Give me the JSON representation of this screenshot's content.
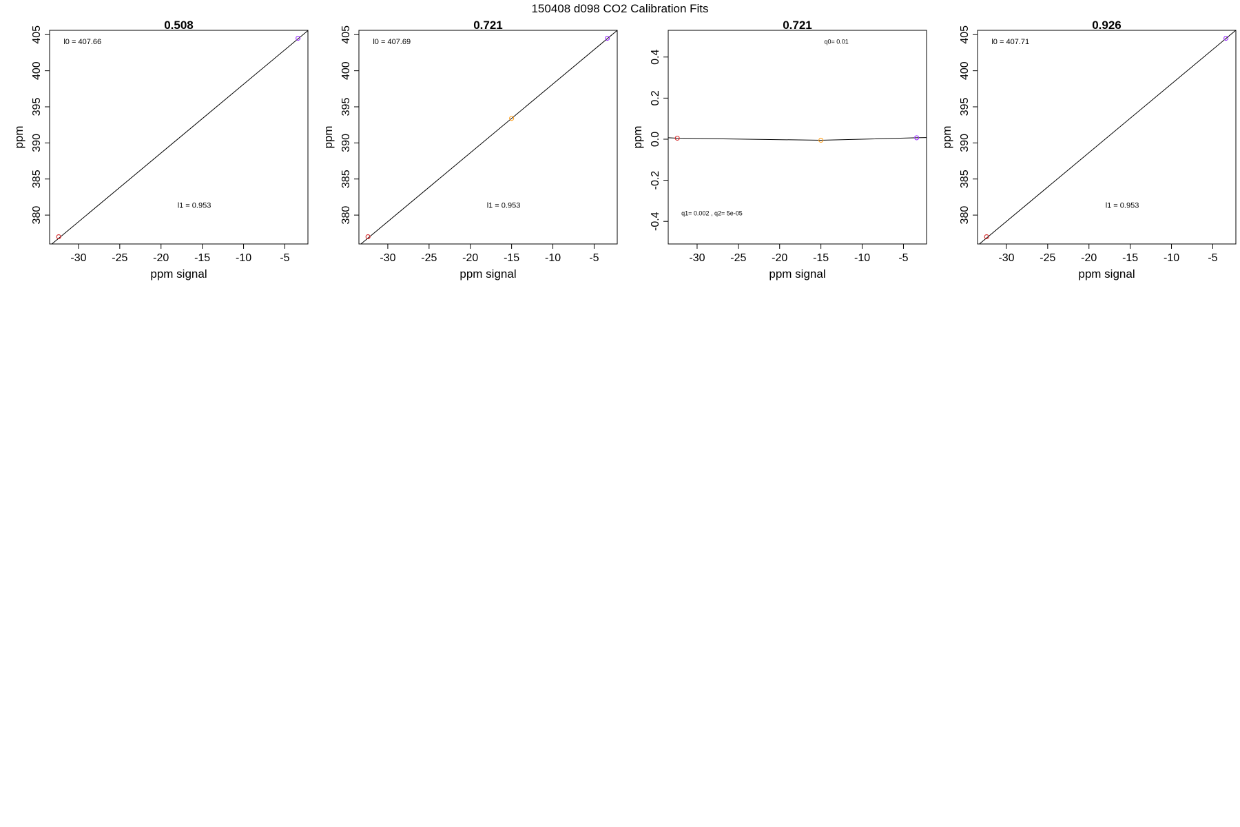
{
  "title": "150408   d098   CO2 Calibration Fits",
  "chart_data": [
    {
      "type": "scatter",
      "title": "0.508",
      "xlabel": "ppm signal",
      "ylabel": "ppm",
      "xlim": [
        -33.5,
        -2.2
      ],
      "ylim": [
        376.0,
        405.6
      ],
      "xticks": [
        -30,
        -25,
        -20,
        -15,
        -10,
        -5
      ],
      "yticks": [
        380,
        385,
        390,
        395,
        400,
        405
      ],
      "grid": false,
      "points": [
        {
          "x": -32.4,
          "y": 377.0,
          "color": "#d62728"
        },
        {
          "x": -3.4,
          "y": 404.5,
          "color": "#9b30ff"
        }
      ],
      "fit": {
        "kind": "linear",
        "intercept": 407.66,
        "slope": 0.953
      },
      "annotations": [
        {
          "text": "l0 =  407.66",
          "x": -31.8,
          "y": 403.7
        },
        {
          "text": "l1 =  0.953",
          "x": -18.0,
          "y": 381.0
        }
      ]
    },
    {
      "type": "scatter",
      "title": "0.721",
      "xlabel": "ppm signal",
      "ylabel": "ppm",
      "xlim": [
        -33.5,
        -2.2
      ],
      "ylim": [
        376.0,
        405.6
      ],
      "xticks": [
        -30,
        -25,
        -20,
        -15,
        -10,
        -5
      ],
      "yticks": [
        380,
        385,
        390,
        395,
        400,
        405
      ],
      "grid": false,
      "points": [
        {
          "x": -32.4,
          "y": 377.0,
          "color": "#d62728"
        },
        {
          "x": -15.0,
          "y": 393.4,
          "color": "#ff9f1c"
        },
        {
          "x": -3.4,
          "y": 404.5,
          "color": "#9b30ff"
        }
      ],
      "fit": {
        "kind": "linear",
        "intercept": 407.69,
        "slope": 0.953
      },
      "annotations": [
        {
          "text": "l0 =  407.69",
          "x": -31.8,
          "y": 403.7
        },
        {
          "text": "l1 =  0.953",
          "x": -18.0,
          "y": 381.0
        }
      ]
    },
    {
      "type": "scatter",
      "title": "0.721",
      "xlabel": "ppm signal",
      "ylabel": "ppm",
      "xlim": [
        -33.5,
        -2.2
      ],
      "ylim": [
        -0.51,
        0.53
      ],
      "xticks": [
        -30,
        -25,
        -20,
        -15,
        -10,
        -5
      ],
      "yticks": [
        -0.4,
        -0.2,
        0.0,
        0.2,
        0.4
      ],
      "ytick_labels": [
        "-0.4",
        "-0.2",
        "0.0",
        "0.2",
        "0.4"
      ],
      "grid": false,
      "points": [
        {
          "x": -32.4,
          "y": 0.005,
          "color": "#d62728"
        },
        {
          "x": -15.0,
          "y": -0.005,
          "color": "#ff9f1c"
        },
        {
          "x": -3.4,
          "y": 0.007,
          "color": "#9b30ff"
        }
      ],
      "fit": {
        "kind": "quadratic",
        "q0": 0.01,
        "q1": 0.002,
        "q2": 5e-05
      },
      "annotations": [
        {
          "text": "q0= 0.01",
          "x": -14.6,
          "y": 0.465
        },
        {
          "text": "q1= 0.002 , q2= 5e-05",
          "x": -31.9,
          "y": -0.37
        }
      ]
    },
    {
      "type": "scatter",
      "title": "0.926",
      "xlabel": "ppm signal",
      "ylabel": "ppm",
      "xlim": [
        -33.5,
        -2.2
      ],
      "ylim": [
        376.0,
        405.6
      ],
      "xticks": [
        -30,
        -25,
        -20,
        -15,
        -10,
        -5
      ],
      "yticks": [
        380,
        385,
        390,
        395,
        400,
        405
      ],
      "grid": false,
      "points": [
        {
          "x": -32.4,
          "y": 377.0,
          "color": "#d62728"
        },
        {
          "x": -3.4,
          "y": 404.5,
          "color": "#9b30ff"
        }
      ],
      "fit": {
        "kind": "linear",
        "intercept": 407.71,
        "slope": 0.953
      },
      "annotations": [
        {
          "text": "l0 =  407.71",
          "x": -31.8,
          "y": 403.7
        },
        {
          "text": "l1 =  0.953",
          "x": -18.0,
          "y": 381.0
        }
      ]
    }
  ]
}
